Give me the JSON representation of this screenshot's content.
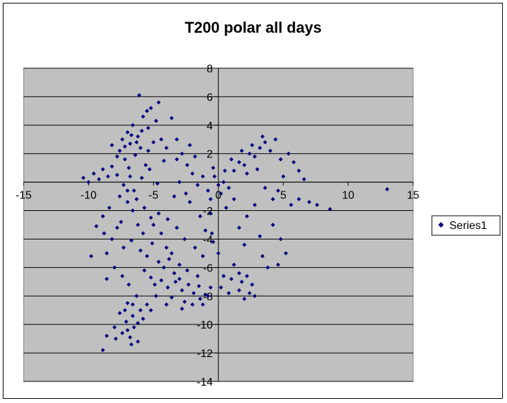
{
  "chart_data": {
    "type": "scatter",
    "title": "T200 polar all days",
    "xlabel": "",
    "ylabel": "",
    "xlim": [
      -15,
      15
    ],
    "ylim": [
      -14,
      8
    ],
    "xticks": [
      -15,
      -10,
      -5,
      0,
      5,
      10,
      15
    ],
    "yticks": [
      8,
      6,
      4,
      2,
      0,
      -2,
      -4,
      -6,
      -8,
      -10,
      -12,
      -14
    ],
    "grid": "horizontal",
    "legend_position": "right",
    "plot_background": "#c0c0c0",
    "marker": "diamond",
    "series": [
      {
        "name": "Series1",
        "color": "#000080",
        "points": [
          [
            -10.4,
            0.3
          ],
          [
            -10.0,
            0.0
          ],
          [
            -9.6,
            0.6
          ],
          [
            -9.2,
            0.2
          ],
          [
            -8.9,
            0.9
          ],
          [
            -8.5,
            0.4
          ],
          [
            -8.2,
            1.1
          ],
          [
            -7.8,
            0.5
          ],
          [
            -7.6,
            2.2
          ],
          [
            -7.4,
            3.0
          ],
          [
            -7.2,
            1.6
          ],
          [
            -7.0,
            3.5
          ],
          [
            -6.8,
            2.7
          ],
          [
            -6.6,
            4.0
          ],
          [
            -6.4,
            1.9
          ],
          [
            -6.2,
            3.2
          ],
          [
            -6.0,
            2.4
          ],
          [
            -5.8,
            4.6
          ],
          [
            -5.6,
            1.2
          ],
          [
            -5.4,
            3.8
          ],
          [
            -5.2,
            5.2
          ],
          [
            -5.0,
            2.8
          ],
          [
            -4.8,
            4.3
          ],
          [
            -4.6,
            5.6
          ],
          [
            -6.1,
            6.1
          ],
          [
            -5.5,
            5.0
          ],
          [
            -4.4,
            3.0
          ],
          [
            -4.2,
            1.5
          ],
          [
            -4.0,
            2.4
          ],
          [
            -3.6,
            4.5
          ],
          [
            -3.2,
            3.0
          ],
          [
            -2.8,
            2.0
          ],
          [
            -2.4,
            1.2
          ],
          [
            -2.0,
            0.6
          ],
          [
            -3.0,
            0.0
          ],
          [
            -2.5,
            -0.8
          ],
          [
            -1.8,
            1.8
          ],
          [
            -6.9,
            1.0
          ],
          [
            -7.3,
            -0.2
          ],
          [
            -6.5,
            -0.6
          ],
          [
            -5.9,
            0.3
          ],
          [
            -5.3,
            0.9
          ],
          [
            -4.7,
            -0.1
          ],
          [
            -7.0,
            -1.4
          ],
          [
            -6.6,
            -2.0
          ],
          [
            -7.5,
            -2.8
          ],
          [
            -6.2,
            -3.0
          ],
          [
            -5.8,
            -3.6
          ],
          [
            -7.8,
            -3.2
          ],
          [
            -8.2,
            -4.0
          ],
          [
            -8.8,
            -3.6
          ],
          [
            -9.4,
            -3.1
          ],
          [
            -9.8,
            -5.2
          ],
          [
            -8.6,
            -5.0
          ],
          [
            -7.3,
            -4.6
          ],
          [
            -6.7,
            -4.1
          ],
          [
            -6.0,
            -4.8
          ],
          [
            -5.5,
            -5.2
          ],
          [
            -5.1,
            -4.3
          ],
          [
            -4.6,
            -5.6
          ],
          [
            -4.2,
            -6.0
          ],
          [
            -3.8,
            -5.4
          ],
          [
            -3.4,
            -6.4
          ],
          [
            -3.0,
            -5.8
          ],
          [
            -5.7,
            -6.2
          ],
          [
            -5.2,
            -6.7
          ],
          [
            -4.9,
            -7.2
          ],
          [
            -4.4,
            -6.9
          ],
          [
            -3.9,
            -7.4
          ],
          [
            -3.3,
            -7.0
          ],
          [
            -2.8,
            -7.6
          ],
          [
            -2.3,
            -7.2
          ],
          [
            -1.9,
            -7.8
          ],
          [
            -1.5,
            -7.3
          ],
          [
            -1.0,
            -7.9
          ],
          [
            -0.6,
            -7.4
          ],
          [
            -2.6,
            -8.4
          ],
          [
            -2.0,
            -8.6
          ],
          [
            -1.4,
            -8.2
          ],
          [
            -3.6,
            -8.1
          ],
          [
            -4.8,
            -8.0
          ],
          [
            -5.5,
            -8.6
          ],
          [
            -6.0,
            -9.0
          ],
          [
            -6.6,
            -9.4
          ],
          [
            -7.1,
            -9.8
          ],
          [
            -7.6,
            -9.2
          ],
          [
            -8.0,
            -10.2
          ],
          [
            -7.4,
            -10.6
          ],
          [
            -6.8,
            -10.9
          ],
          [
            -6.2,
            -11.2
          ],
          [
            -8.6,
            -10.8
          ],
          [
            -8.9,
            -11.8
          ],
          [
            -7.9,
            -11.0
          ],
          [
            -6.5,
            -10.2
          ],
          [
            -5.8,
            -9.6
          ],
          [
            -5.2,
            -9.0
          ],
          [
            -4.0,
            -8.6
          ],
          [
            -6.3,
            -8.0
          ],
          [
            -7.0,
            -8.5
          ],
          [
            -6.9,
            -7.2
          ],
          [
            -7.4,
            -6.6
          ],
          [
            -8.0,
            -6.0
          ],
          [
            -8.6,
            -6.8
          ],
          [
            -5.0,
            -3.0
          ],
          [
            -4.4,
            -3.6
          ],
          [
            -3.9,
            -2.6
          ],
          [
            -3.2,
            -3.2
          ],
          [
            -2.6,
            -4.0
          ],
          [
            -1.8,
            -4.6
          ],
          [
            -1.2,
            -5.2
          ],
          [
            -0.5,
            -3.6
          ],
          [
            -1.4,
            -2.4
          ],
          [
            -0.6,
            -1.2
          ],
          [
            0.0,
            -0.2
          ],
          [
            -0.3,
            0.4
          ],
          [
            0.4,
            0.0
          ],
          [
            0.8,
            -0.4
          ],
          [
            0.2,
            -0.8
          ],
          [
            -0.8,
            -0.6
          ],
          [
            0.5,
            0.8
          ],
          [
            -0.4,
            1.0
          ],
          [
            1.2,
            0.8
          ],
          [
            1.6,
            1.4
          ],
          [
            2.0,
            1.2
          ],
          [
            2.4,
            2.0
          ],
          [
            2.8,
            1.8
          ],
          [
            3.2,
            2.4
          ],
          [
            3.6,
            2.8
          ],
          [
            4.0,
            2.2
          ],
          [
            4.4,
            3.0
          ],
          [
            3.4,
            3.2
          ],
          [
            2.6,
            2.6
          ],
          [
            1.8,
            2.2
          ],
          [
            1.0,
            1.6
          ],
          [
            2.2,
            0.6
          ],
          [
            3.0,
            0.9
          ],
          [
            4.8,
            1.6
          ],
          [
            5.4,
            2.0
          ],
          [
            5.8,
            1.4
          ],
          [
            6.2,
            0.8
          ],
          [
            6.6,
            0.2
          ],
          [
            5.0,
            0.4
          ],
          [
            4.6,
            -0.6
          ],
          [
            5.6,
            -1.6
          ],
          [
            6.2,
            -1.2
          ],
          [
            7.0,
            -1.4
          ],
          [
            7.6,
            -1.6
          ],
          [
            8.6,
            -1.9
          ],
          [
            13.0,
            -0.5
          ],
          [
            4.2,
            -1.2
          ],
          [
            3.6,
            -0.4
          ],
          [
            2.8,
            -1.6
          ],
          [
            2.2,
            -2.4
          ],
          [
            1.6,
            -3.2
          ],
          [
            2.0,
            -4.4
          ],
          [
            3.2,
            -3.8
          ],
          [
            4.2,
            -3.0
          ],
          [
            4.8,
            -4.0
          ],
          [
            5.2,
            -5.0
          ],
          [
            4.6,
            -5.8
          ],
          [
            3.8,
            -6.0
          ],
          [
            3.4,
            -5.2
          ],
          [
            1.2,
            -5.8
          ],
          [
            1.6,
            -6.4
          ],
          [
            2.2,
            -6.6
          ],
          [
            2.6,
            -7.2
          ],
          [
            1.8,
            -7.0
          ],
          [
            1.0,
            -6.8
          ],
          [
            0.4,
            -6.6
          ],
          [
            0.2,
            -7.4
          ],
          [
            0.8,
            -7.8
          ],
          [
            1.6,
            -7.6
          ],
          [
            2.4,
            -7.8
          ],
          [
            2.0,
            -8.2
          ],
          [
            2.8,
            -8.0
          ],
          [
            0.0,
            -5.0
          ],
          [
            -0.4,
            -4.2
          ],
          [
            -1.0,
            -3.4
          ],
          [
            -2.2,
            -1.4
          ],
          [
            -3.4,
            -1.0
          ],
          [
            -4.6,
            -2.2
          ],
          [
            -3.2,
            1.6
          ],
          [
            -2.2,
            2.6
          ],
          [
            -1.6,
            -0.2
          ],
          [
            -1.2,
            0.4
          ],
          [
            -0.6,
            -2.2
          ],
          [
            0.6,
            -1.8
          ],
          [
            1.2,
            -1.2
          ],
          [
            -7.8,
            1.8
          ],
          [
            -8.2,
            2.6
          ],
          [
            -7.2,
            2.5
          ],
          [
            -6.7,
            3.3
          ],
          [
            -6.3,
            2.8
          ],
          [
            -5.9,
            3.6
          ],
          [
            -5.4,
            2.2
          ],
          [
            -6.8,
            0.4
          ],
          [
            -7.0,
            -0.6
          ],
          [
            -6.3,
            -1.2
          ],
          [
            -5.7,
            -1.8
          ],
          [
            -5.2,
            -2.5
          ],
          [
            -7.6,
            -1.0
          ],
          [
            -8.4,
            -1.8
          ],
          [
            -8.9,
            -2.4
          ],
          [
            -4.0,
            -4.6
          ],
          [
            -3.6,
            -5.0
          ],
          [
            -3.0,
            -6.8
          ],
          [
            -2.4,
            -6.2
          ],
          [
            -1.6,
            -6.6
          ],
          [
            -1.2,
            -8.6
          ],
          [
            -0.8,
            -8.0
          ],
          [
            -2.8,
            -8.9
          ],
          [
            -6.6,
            -8.6
          ],
          [
            -7.2,
            -9.0
          ],
          [
            -6.2,
            -9.9
          ],
          [
            -7.0,
            -10.4
          ],
          [
            -6.7,
            -11.4
          ]
        ]
      }
    ]
  }
}
